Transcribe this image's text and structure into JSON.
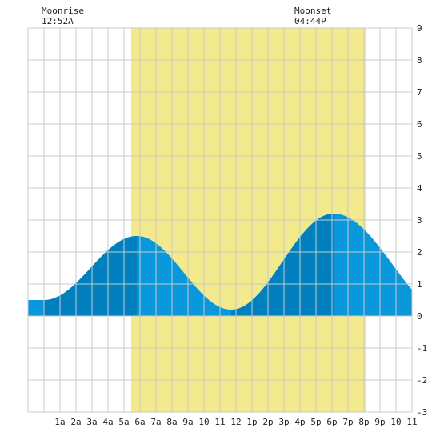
{
  "moon": {
    "rise_label": "Moonrise",
    "rise_time": "12:52A",
    "set_label": "Moonset",
    "set_time": "04:44P"
  },
  "colors": {
    "daylight": "#f2ea8c",
    "tide_flood": "#0a98dc",
    "tide_ebb": "#0080bf",
    "grid": "#c8c8c8"
  },
  "chart_data": {
    "type": "area",
    "title": "",
    "xlabel": "",
    "ylabel": "",
    "x_range_hours": [
      -1,
      23
    ],
    "ylim": [
      -3,
      9
    ],
    "y_ticks": [
      "-3",
      "-2",
      "-1",
      "0",
      "1",
      "2",
      "3",
      "4",
      "5",
      "6",
      "7",
      "8",
      "9"
    ],
    "x_ticks": [
      {
        "hour": 1,
        "label": "1a"
      },
      {
        "hour": 2,
        "label": "2a"
      },
      {
        "hour": 3,
        "label": "3a"
      },
      {
        "hour": 4,
        "label": "4a"
      },
      {
        "hour": 5,
        "label": "5a"
      },
      {
        "hour": 6,
        "label": "6a"
      },
      {
        "hour": 7,
        "label": "7a"
      },
      {
        "hour": 8,
        "label": "8a"
      },
      {
        "hour": 9,
        "label": "9a"
      },
      {
        "hour": 10,
        "label": "10"
      },
      {
        "hour": 11,
        "label": "11"
      },
      {
        "hour": 12,
        "label": "12"
      },
      {
        "hour": 13,
        "label": "1p"
      },
      {
        "hour": 14,
        "label": "2p"
      },
      {
        "hour": 15,
        "label": "3p"
      },
      {
        "hour": 16,
        "label": "4p"
      },
      {
        "hour": 17,
        "label": "5p"
      },
      {
        "hour": 18,
        "label": "6p"
      },
      {
        "hour": 19,
        "label": "7p"
      },
      {
        "hour": 20,
        "label": "8p"
      },
      {
        "hour": 21,
        "label": "9p"
      },
      {
        "hour": 22,
        "label": "10"
      },
      {
        "hour": 23,
        "label": "11"
      }
    ],
    "daylight_hours": [
      5.45,
      20.15
    ],
    "tide_extremes": [
      {
        "hour": 0.0,
        "height": 0.5,
        "kind": "low"
      },
      {
        "hour": 5.8,
        "height": 2.5,
        "kind": "high"
      },
      {
        "hour": 11.7,
        "height": 0.2,
        "kind": "low"
      },
      {
        "hour": 18.1,
        "height": 3.2,
        "kind": "high"
      },
      {
        "hour": 25.5,
        "height": 0.0,
        "kind": "low"
      }
    ],
    "grid": true
  }
}
